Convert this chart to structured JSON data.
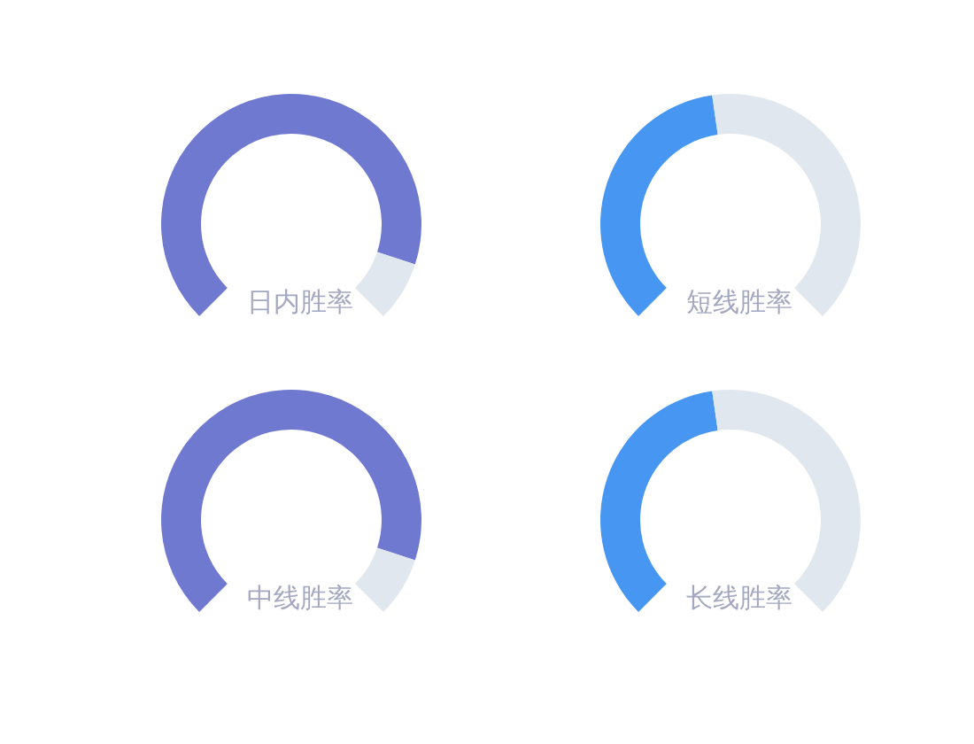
{
  "chart_data": [
    {
      "type": "donut",
      "title": "日内胜率",
      "categories": [
        null,
        null
      ],
      "values": [
        90,
        10
      ],
      "colors": [
        "#7079d0",
        "#e1e7ee"
      ]
    },
    {
      "type": "donut",
      "title": "短线胜率",
      "categories": [
        null,
        null
      ],
      "values": [
        47,
        53
      ],
      "colors": [
        "#4696f2",
        "#e1e7ee"
      ]
    },
    {
      "type": "donut",
      "title": "中线胜率",
      "categories": [
        null,
        null
      ],
      "values": [
        90,
        10
      ],
      "colors": [
        "#7079d0",
        "#e1e7ee"
      ]
    },
    {
      "type": "donut",
      "title": "长线胜率",
      "categories": [
        null,
        null
      ],
      "values": [
        47,
        53
      ],
      "colors": [
        "#4696f2",
        "#e1e7ee"
      ]
    }
  ]
}
